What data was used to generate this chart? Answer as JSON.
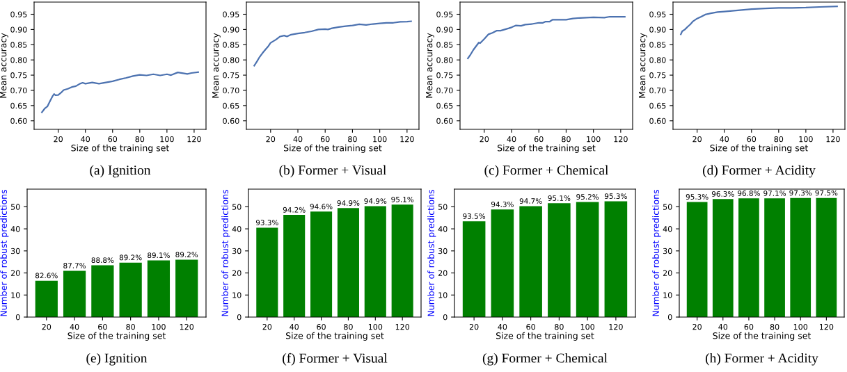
{
  "chart_data": [
    {
      "type": "line",
      "title": "(a) Ignition",
      "xlabel": "Size of the training set",
      "ylabel": "Mean accuracy",
      "xlim": [
        2.25,
        128.75
      ],
      "ylim": [
        0.572,
        0.99
      ],
      "xticks": [
        20,
        40,
        60,
        80,
        100,
        120
      ],
      "yticks": [
        {
          "value": 0.6,
          "label": "0.60"
        },
        0.65,
        {
          "value": 0.7,
          "label": "0.70"
        },
        0.75,
        {
          "value": 0.8,
          "label": "0.80"
        },
        0.85,
        {
          "value": 0.9,
          "label": "0.90"
        },
        0.95
      ],
      "x": [
        8,
        10,
        12,
        14,
        16,
        17,
        18,
        20,
        22,
        24,
        27,
        30,
        33,
        36,
        38,
        40,
        45,
        50,
        55,
        60,
        65,
        70,
        75,
        80,
        85,
        90,
        95,
        100,
        103,
        108,
        112,
        115,
        118,
        123
      ],
      "series": [
        {
          "color": "#4c72b0",
          "values": [
            0.628,
            0.64,
            0.647,
            0.665,
            0.682,
            0.688,
            0.684,
            0.685,
            0.692,
            0.701,
            0.705,
            0.711,
            0.714,
            0.722,
            0.725,
            0.722,
            0.726,
            0.722,
            0.726,
            0.73,
            0.736,
            0.741,
            0.747,
            0.751,
            0.749,
            0.753,
            0.749,
            0.753,
            0.75,
            0.759,
            0.756,
            0.754,
            0.757,
            0.76
          ]
        }
      ]
    },
    {
      "type": "line",
      "title": "(b) Former + Visual",
      "xlabel": "Size of the training set",
      "ylabel": "Mean accuracy",
      "xlim": [
        2.25,
        128.75
      ],
      "ylim": [
        0.572,
        0.99
      ],
      "xticks": [
        20,
        40,
        60,
        80,
        100,
        120
      ],
      "yticks": [
        {
          "value": 0.6,
          "label": "0.60"
        },
        0.65,
        {
          "value": 0.7,
          "label": "0.70"
        },
        0.75,
        {
          "value": 0.8,
          "label": "0.80"
        },
        0.85,
        {
          "value": 0.9,
          "label": "0.90"
        },
        0.95
      ],
      "x": [
        8,
        10,
        12,
        14,
        16,
        18,
        20,
        24,
        27,
        30,
        32,
        35,
        40,
        45,
        50,
        55,
        60,
        62,
        65,
        70,
        75,
        80,
        85,
        90,
        95,
        100,
        105,
        110,
        115,
        120,
        123
      ],
      "series": [
        {
          "color": "#4c72b0",
          "values": [
            0.781,
            0.795,
            0.81,
            0.822,
            0.833,
            0.843,
            0.856,
            0.867,
            0.877,
            0.88,
            0.877,
            0.883,
            0.887,
            0.89,
            0.894,
            0.9,
            0.901,
            0.9,
            0.904,
            0.908,
            0.911,
            0.913,
            0.917,
            0.915,
            0.918,
            0.92,
            0.922,
            0.922,
            0.925,
            0.926,
            0.927
          ]
        }
      ]
    },
    {
      "type": "line",
      "title": "(c) Former + Chemical",
      "xlabel": "Size of the training set",
      "ylabel": "Mean accuracy",
      "xlim": [
        2.25,
        128.75
      ],
      "ylim": [
        0.572,
        0.99
      ],
      "xticks": [
        20,
        40,
        60,
        80,
        100,
        120
      ],
      "yticks": [
        {
          "value": 0.6,
          "label": "0.60"
        },
        0.65,
        {
          "value": 0.7,
          "label": "0.70"
        },
        0.75,
        {
          "value": 0.8,
          "label": "0.80"
        },
        0.85,
        {
          "value": 0.9,
          "label": "0.90"
        },
        0.95
      ],
      "x": [
        8,
        10,
        12,
        14,
        16,
        17,
        18,
        20,
        23,
        26,
        29,
        32,
        35,
        38,
        40,
        43,
        47,
        50,
        55,
        60,
        63,
        65,
        68,
        70,
        75,
        80,
        85,
        90,
        95,
        100,
        108,
        112,
        118,
        123
      ],
      "series": [
        {
          "color": "#4c72b0",
          "values": [
            0.805,
            0.818,
            0.833,
            0.845,
            0.857,
            0.855,
            0.86,
            0.869,
            0.884,
            0.889,
            0.896,
            0.896,
            0.9,
            0.904,
            0.907,
            0.913,
            0.912,
            0.916,
            0.918,
            0.922,
            0.922,
            0.926,
            0.926,
            0.932,
            0.932,
            0.932,
            0.936,
            0.938,
            0.939,
            0.94,
            0.939,
            0.942,
            0.942,
            0.942
          ]
        }
      ]
    },
    {
      "type": "line",
      "title": "(d) Former + Acidity",
      "xlabel": "Size of the training set",
      "ylabel": "Mean accuracy",
      "xlim": [
        2.25,
        128.75
      ],
      "ylim": [
        0.572,
        0.99
      ],
      "xticks": [
        20,
        40,
        60,
        80,
        100,
        120
      ],
      "yticks": [
        {
          "value": 0.6,
          "label": "0.60"
        },
        0.65,
        {
          "value": 0.7,
          "label": "0.70"
        },
        0.75,
        {
          "value": 0.8,
          "label": "0.80"
        },
        0.85,
        {
          "value": 0.9,
          "label": "0.90"
        },
        0.95
      ],
      "x": [
        8,
        9,
        11,
        13,
        15,
        17,
        20,
        23,
        26,
        30,
        35,
        40,
        50,
        60,
        70,
        80,
        90,
        100,
        110,
        123
      ],
      "series": [
        {
          "color": "#4c72b0",
          "values": [
            0.884,
            0.894,
            0.9,
            0.909,
            0.917,
            0.927,
            0.936,
            0.942,
            0.949,
            0.953,
            0.957,
            0.959,
            0.963,
            0.967,
            0.969,
            0.971,
            0.971,
            0.972,
            0.974,
            0.976
          ]
        }
      ]
    },
    {
      "type": "bar",
      "title": "(e) Ignition",
      "xlabel": "Size of the training set",
      "ylabel": "Number of robust predictions",
      "categories": [
        "20",
        "40",
        "60",
        "80",
        "100",
        "120"
      ],
      "ylim": [
        0,
        58
      ],
      "yticks": [
        0,
        10,
        20,
        30,
        40,
        50
      ],
      "series": [
        {
          "color": "#008000",
          "values": [
            16.5,
            21,
            23.5,
            24.7,
            25.7,
            26
          ]
        }
      ],
      "annotations": [
        {
          "text": "82.6%",
          "x": "20",
          "y": 16.5
        },
        {
          "text": "87.7%",
          "x": "40",
          "y": 21
        },
        {
          "text": "88.8%",
          "x": "60",
          "y": 23.5
        },
        {
          "text": "89.2%",
          "x": "80",
          "y": 24.7
        },
        {
          "text": "89.1%",
          "x": "100",
          "y": 25.7
        },
        {
          "text": "89.2%",
          "x": "120",
          "y": 26
        }
      ]
    },
    {
      "type": "bar",
      "title": "(f) Former + Visual",
      "xlabel": "Size of the training set",
      "ylabel": "Number of robust predictions",
      "categories": [
        "20",
        "40",
        "60",
        "80",
        "100",
        "120"
      ],
      "ylim": [
        0,
        58
      ],
      "yticks": [
        0,
        10,
        20,
        30,
        40,
        50
      ],
      "series": [
        {
          "color": "#008000",
          "values": [
            40.5,
            46.3,
            47.8,
            49.4,
            50.3,
            51
          ]
        }
      ],
      "annotations": [
        {
          "text": "93.3%",
          "x": "20",
          "y": 40.5
        },
        {
          "text": "94.2%",
          "x": "40",
          "y": 46.3
        },
        {
          "text": "94.6%",
          "x": "60",
          "y": 47.8
        },
        {
          "text": "94.9%",
          "x": "80",
          "y": 49.4
        },
        {
          "text": "94.9%",
          "x": "100",
          "y": 50.3
        },
        {
          "text": "95.1%",
          "x": "120",
          "y": 51
        }
      ]
    },
    {
      "type": "bar",
      "title": "(g) Former + Chemical",
      "xlabel": "Size of the training set",
      "ylabel": "Number of robust predictions",
      "categories": [
        "20",
        "40",
        "60",
        "80",
        "100",
        "120"
      ],
      "ylim": [
        0,
        58
      ],
      "yticks": [
        0,
        10,
        20,
        30,
        40,
        50
      ],
      "series": [
        {
          "color": "#008000",
          "values": [
            43.4,
            48.8,
            50.3,
            51.6,
            52.2,
            52.5
          ]
        }
      ],
      "annotations": [
        {
          "text": "93.5%",
          "x": "20",
          "y": 43.4
        },
        {
          "text": "94.3%",
          "x": "40",
          "y": 48.8
        },
        {
          "text": "94.7%",
          "x": "60",
          "y": 50.3
        },
        {
          "text": "95.1%",
          "x": "80",
          "y": 51.6
        },
        {
          "text": "95.2%",
          "x": "100",
          "y": 52.2
        },
        {
          "text": "95.3%",
          "x": "120",
          "y": 52.5
        }
      ]
    },
    {
      "type": "bar",
      "title": "(h) Former + Acidity",
      "xlabel": "Size of the training set",
      "ylabel": "Number of robust predictions",
      "categories": [
        "20",
        "40",
        "60",
        "80",
        "100",
        "120"
      ],
      "ylim": [
        0,
        58
      ],
      "yticks": [
        0,
        10,
        20,
        30,
        40,
        50
      ],
      "series": [
        {
          "color": "#008000",
          "values": [
            52.2,
            53.5,
            53.8,
            53.8,
            54,
            54
          ]
        }
      ],
      "annotations": [
        {
          "text": "95.3%",
          "x": "20",
          "y": 52.2
        },
        {
          "text": "96.3%",
          "x": "40",
          "y": 53.5
        },
        {
          "text": "96.8%",
          "x": "60",
          "y": 53.8
        },
        {
          "text": "97.1%",
          "x": "80",
          "y": 53.8
        },
        {
          "text": "97.3%",
          "x": "100",
          "y": 54
        },
        {
          "text": "97.5%",
          "x": "120",
          "y": 54
        }
      ]
    }
  ]
}
